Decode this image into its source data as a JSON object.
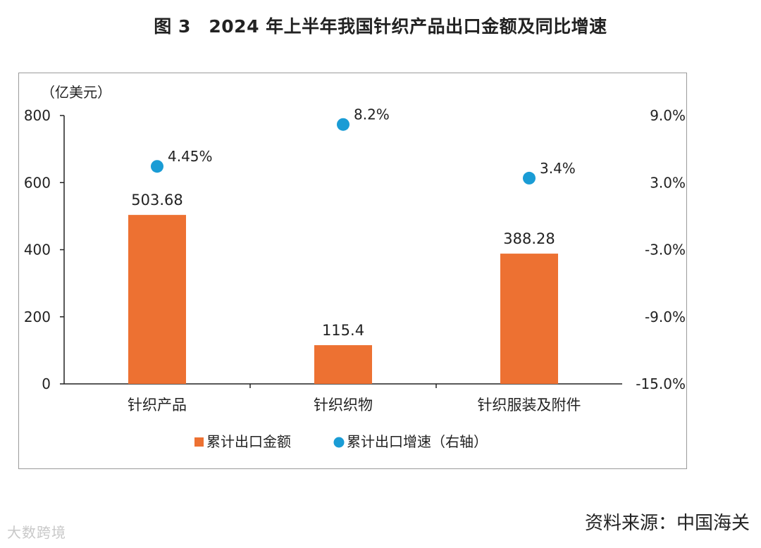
{
  "title": "图 3　2024 年上半年我国针织产品出口金额及同比增速",
  "source": "资料来源：中国海关",
  "watermark": "大数跨境",
  "colors": {
    "bar": "#ED7132",
    "dot": "#1A9CD5",
    "axis": "#222222"
  },
  "chart_data": {
    "type": "bar",
    "categories": [
      "针织产品",
      "针织织物",
      "针织服装及附件"
    ],
    "y_unit_label": "（亿美元）",
    "ylim": [
      0,
      800
    ],
    "y_ticks": [
      "0",
      "200",
      "400",
      "600",
      "800"
    ],
    "y2lim": [
      -15.0,
      9.0
    ],
    "y2_ticks": [
      "-15.0%",
      "-9.0%",
      "-3.0%",
      "3.0%",
      "9.0%"
    ],
    "grid": false,
    "legend_position": "bottom",
    "series": [
      {
        "name": "累计出口金额",
        "type": "bar",
        "axis": "left",
        "values": [
          503.68,
          115.4,
          388.28
        ],
        "labels": [
          "503.68",
          "115.4",
          "388.28"
        ]
      },
      {
        "name": "累计出口增速（右轴）",
        "type": "scatter",
        "axis": "right",
        "values": [
          4.45,
          8.2,
          3.4
        ],
        "labels": [
          "4.45%",
          "8.2%",
          "3.4%"
        ]
      }
    ]
  }
}
